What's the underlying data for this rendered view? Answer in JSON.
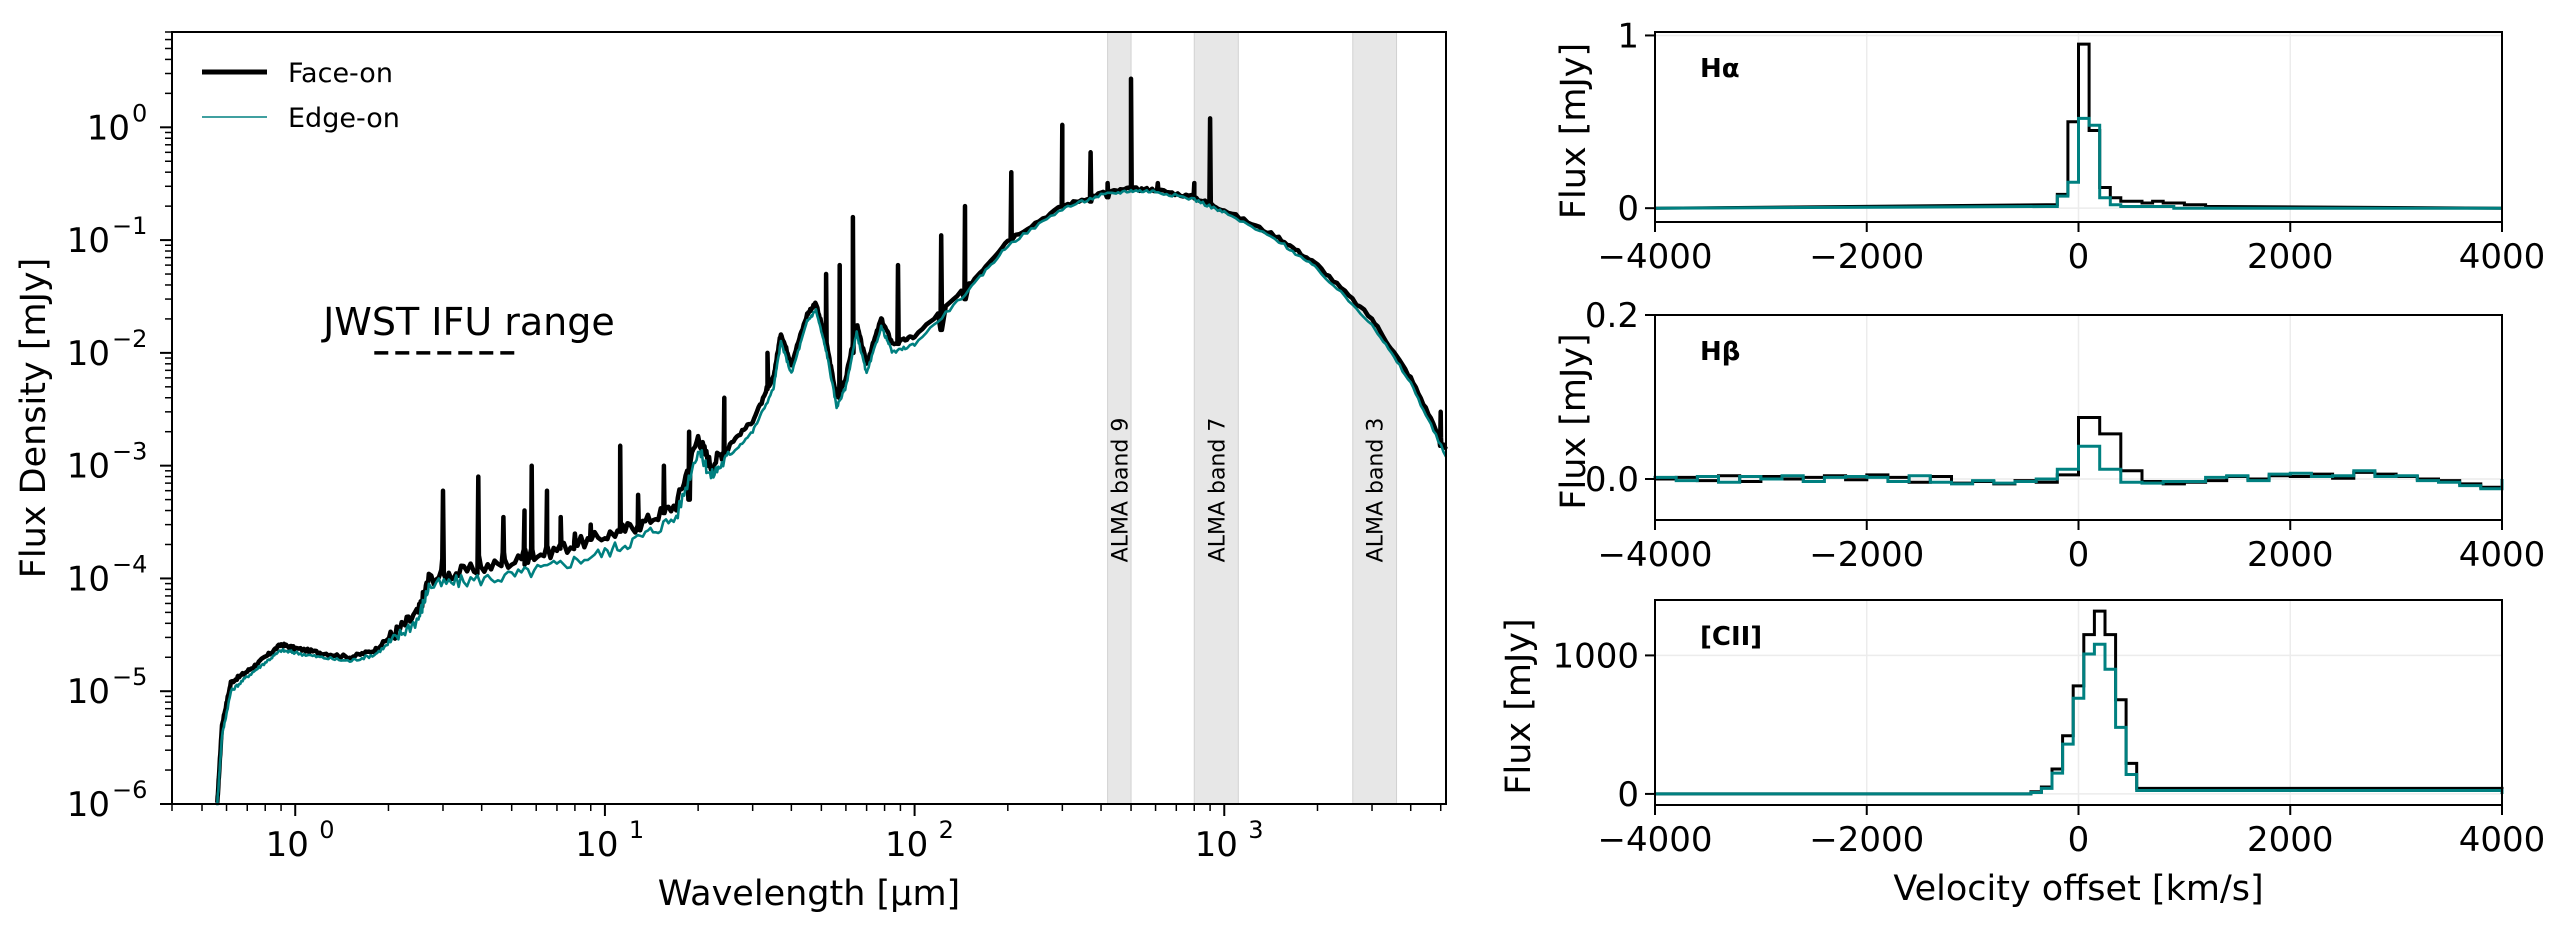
{
  "chart_data": [
    {
      "type": "line",
      "title": "",
      "xlabel": "Wavelength [μm]",
      "ylabel": "Flux Density [mJy]",
      "xscale": "log",
      "yscale": "log",
      "xlim": [
        0.4,
        5200
      ],
      "ylim": [
        1e-06,
        7
      ],
      "x_ticks": [
        {
          "value": 1,
          "base": "10",
          "exp": "0"
        },
        {
          "value": 10,
          "base": "10",
          "exp": "1"
        },
        {
          "value": 100,
          "base": "10",
          "exp": "2"
        },
        {
          "value": 1000,
          "base": "10",
          "exp": "3"
        }
      ],
      "y_ticks": [
        {
          "value": 1,
          "base": "10",
          "exp": "0"
        },
        {
          "value": 0.1,
          "base": "10",
          "exp": "−1"
        },
        {
          "value": 0.01,
          "base": "10",
          "exp": "−2"
        },
        {
          "value": 0.001,
          "base": "10",
          "exp": "−3"
        },
        {
          "value": 0.0001,
          "base": "10",
          "exp": "−4"
        },
        {
          "value": 1e-05,
          "base": "10",
          "exp": "−5"
        },
        {
          "value": 1e-06,
          "base": "10",
          "exp": "−6"
        }
      ],
      "legend": {
        "position": "top-left"
      },
      "series": [
        {
          "name": "Face-on",
          "color": "#000000",
          "continuum": [
            [
              0.56,
              1e-06
            ],
            [
              0.58,
              5e-06
            ],
            [
              0.62,
              1.2e-05
            ],
            [
              0.7,
              1.5e-05
            ],
            [
              0.8,
              2e-05
            ],
            [
              0.9,
              2.6e-05
            ],
            [
              1.0,
              2.4e-05
            ],
            [
              1.2,
              2.2e-05
            ],
            [
              1.5,
              2e-05
            ],
            [
              1.8,
              2.3e-05
            ],
            [
              2.1,
              3.3e-05
            ],
            [
              2.5,
              5e-05
            ],
            [
              2.7,
              0.0001
            ],
            [
              3.5,
              0.000115
            ],
            [
              5.0,
              0.00014
            ],
            [
              7.0,
              0.00018
            ],
            [
              10,
              0.00024
            ],
            [
              13,
              0.0003
            ],
            [
              17,
              0.00045
            ],
            [
              20,
              0.0018
            ],
            [
              22,
              0.001
            ],
            [
              25,
              0.0015
            ],
            [
              30,
              0.0025
            ],
            [
              35,
              0.006
            ],
            [
              37,
              0.015
            ],
            [
              40,
              0.008
            ],
            [
              45,
              0.022
            ],
            [
              48,
              0.028
            ],
            [
              52,
              0.012
            ],
            [
              56,
              0.004
            ],
            [
              60,
              0.006
            ],
            [
              65,
              0.018
            ],
            [
              70,
              0.008
            ],
            [
              78,
              0.02
            ],
            [
              85,
              0.012
            ],
            [
              100,
              0.014
            ],
            [
              150,
              0.04
            ],
            [
              200,
              0.1
            ],
            [
              300,
              0.2
            ],
            [
              400,
              0.26
            ],
            [
              500,
              0.285
            ],
            [
              600,
              0.28
            ],
            [
              800,
              0.24
            ],
            [
              1000,
              0.185
            ],
            [
              1500,
              0.105
            ],
            [
              2000,
              0.06
            ],
            [
              3000,
              0.02
            ],
            [
              4000,
              0.006
            ],
            [
              5200,
              0.0014
            ]
          ]
        },
        {
          "name": "Edge-on",
          "color": "#008080",
          "continuum": [
            [
              0.56,
              1e-06
            ],
            [
              0.58,
              4e-06
            ],
            [
              0.62,
              1e-05
            ],
            [
              0.7,
              1.35e-05
            ],
            [
              0.8,
              1.8e-05
            ],
            [
              0.9,
              2.3e-05
            ],
            [
              1.0,
              2.2e-05
            ],
            [
              1.2,
              2e-05
            ],
            [
              1.5,
              1.85e-05
            ],
            [
              1.8,
              2.1e-05
            ],
            [
              2.1,
              2.9e-05
            ],
            [
              2.5,
              4.4e-05
            ],
            [
              2.7,
              8.5e-05
            ],
            [
              3.5,
              9.5e-05
            ],
            [
              5.0,
              0.000105
            ],
            [
              7.0,
              0.00013
            ],
            [
              10,
              0.00017
            ],
            [
              13,
              0.00023
            ],
            [
              17,
              0.00035
            ],
            [
              20,
              0.0014
            ],
            [
              22,
              0.0008
            ],
            [
              25,
              0.0012
            ],
            [
              30,
              0.002
            ],
            [
              35,
              0.0048
            ],
            [
              37,
              0.0125
            ],
            [
              40,
              0.0065
            ],
            [
              45,
              0.019
            ],
            [
              48,
              0.024
            ],
            [
              52,
              0.01
            ],
            [
              56,
              0.0033
            ],
            [
              60,
              0.005
            ],
            [
              65,
              0.015
            ],
            [
              70,
              0.0065
            ],
            [
              78,
              0.017
            ],
            [
              85,
              0.01
            ],
            [
              100,
              0.012
            ],
            [
              150,
              0.036
            ],
            [
              200,
              0.09
            ],
            [
              300,
              0.19
            ],
            [
              400,
              0.25
            ],
            [
              500,
              0.275
            ],
            [
              600,
              0.27
            ],
            [
              800,
              0.23
            ],
            [
              1000,
              0.175
            ],
            [
              1500,
              0.098
            ],
            [
              2000,
              0.055
            ],
            [
              3000,
              0.018
            ],
            [
              4000,
              0.0054
            ],
            [
              5200,
              0.0012
            ]
          ]
        }
      ],
      "emission_lines": [
        [
          3.0,
          0.00015,
          0.0006
        ],
        [
          3.9,
          0.00016,
          0.0008
        ],
        [
          4.7,
          0.00017,
          0.00035
        ],
        [
          5.5,
          0.00018,
          0.0004
        ],
        [
          5.8,
          0.00018,
          0.001
        ],
        [
          6.5,
          0.00019,
          0.0006
        ],
        [
          7.2,
          0.0002,
          0.00035
        ],
        [
          8.0,
          0.00021,
          0.00025
        ],
        [
          9.0,
          0.00022,
          0.0003
        ],
        [
          11.2,
          0.00026,
          0.0015
        ],
        [
          12.8,
          0.00029,
          0.00055
        ],
        [
          15.5,
          0.00038,
          0.001
        ],
        [
          18.7,
          0.0005,
          0.002
        ],
        [
          24.3,
          0.0013,
          0.004
        ],
        [
          33.5,
          0.005,
          0.01
        ],
        [
          51.8,
          0.012,
          0.05
        ],
        [
          57.3,
          0.004,
          0.06
        ],
        [
          63.2,
          0.01,
          0.16
        ],
        [
          88.4,
          0.012,
          0.06
        ],
        [
          121.9,
          0.016,
          0.11
        ],
        [
          145.5,
          0.03,
          0.2
        ],
        [
          205.2,
          0.1,
          0.4
        ],
        [
          300,
          0.2,
          1.05
        ],
        [
          370,
          0.22,
          0.6
        ],
        [
          420,
          0.24,
          0.32
        ],
        [
          500,
          0.285,
          2.7
        ],
        [
          610,
          0.28,
          0.32
        ],
        [
          800,
          0.24,
          0.32
        ],
        [
          900,
          0.21,
          1.2
        ],
        [
          5000,
          0.0015,
          0.003
        ]
      ],
      "jwst_range": {
        "label": "JWST IFU range",
        "x": [
          1.8,
          5.3
        ],
        "y": 0.01
      },
      "alma_bands": [
        {
          "label": "ALMA band 9",
          "x": [
            420,
            500
          ]
        },
        {
          "label": "ALMA band 7",
          "x": [
            800,
            1110
          ]
        },
        {
          "label": "ALMA band 3",
          "x": [
            2600,
            3600
          ]
        }
      ]
    },
    {
      "type": "line",
      "panel_label": "Hα",
      "xlabel": "",
      "ylabel": "Flux [mJy]",
      "xlim": [
        -4000,
        4000
      ],
      "ylim": [
        -0.08,
        1.02
      ],
      "x_ticks": [
        -4000,
        -2000,
        0,
        2000,
        4000
      ],
      "x_tick_labels": [
        "−4000",
        "−2000",
        "0",
        "2000",
        "4000"
      ],
      "y_ticks": [
        0,
        1
      ],
      "y_tick_labels": [
        "0",
        "1"
      ],
      "x": [
        -300,
        -200,
        -100,
        0,
        100,
        200,
        300,
        400,
        500,
        600,
        700,
        800,
        900,
        1000,
        1100,
        1200
      ],
      "series": [
        {
          "name": "Face-on",
          "color": "#000000",
          "values": [
            0.02,
            0.08,
            0.5,
            0.95,
            0.45,
            0.12,
            0.06,
            0.04,
            0.04,
            0.03,
            0.04,
            0.03,
            0.03,
            0.02,
            0.02,
            0.01
          ]
        },
        {
          "name": "Edge-on",
          "color": "#008080",
          "values": [
            0.01,
            0.07,
            0.15,
            0.52,
            0.48,
            0.06,
            0.02,
            0.01,
            0.01,
            0.01,
            0.01,
            0.01,
            0.0,
            0.0,
            0.0,
            0.0
          ]
        }
      ]
    },
    {
      "type": "line",
      "panel_label": "Hβ",
      "xlabel": "",
      "ylabel": "Flux [mJy]",
      "xlim": [
        -4000,
        4000
      ],
      "ylim": [
        -0.05,
        0.2
      ],
      "x_ticks": [
        -4000,
        -2000,
        0,
        2000,
        4000
      ],
      "x_tick_labels": [
        "−4000",
        "−2000",
        "0",
        "2000",
        "4000"
      ],
      "y_ticks": [
        0,
        0.2
      ],
      "y_tick_labels": [
        "0.0",
        "0.2"
      ],
      "x": [
        -4000,
        -3800,
        -3600,
        -3400,
        -3200,
        -3000,
        -2800,
        -2600,
        -2400,
        -2200,
        -2000,
        -1800,
        -1600,
        -1400,
        -1200,
        -1000,
        -800,
        -600,
        -400,
        -200,
        0,
        200,
        400,
        600,
        800,
        1000,
        1200,
        1400,
        1600,
        1800,
        2000,
        2200,
        2400,
        2600,
        2800,
        3000,
        3200,
        3400,
        3600,
        3800
      ],
      "series": [
        {
          "name": "Face-on",
          "color": "#000000",
          "values": [
            0.0,
            0.002,
            -0.002,
            0.004,
            -0.003,
            0.003,
            0.0,
            0.002,
            0.004,
            -0.001,
            0.005,
            0.002,
            -0.004,
            0.003,
            -0.005,
            -0.003,
            -0.006,
            -0.002,
            -0.004,
            0.005,
            0.075,
            0.055,
            0.01,
            -0.003,
            -0.006,
            -0.004,
            -0.002,
            0.003,
            0.0,
            0.004,
            0.003,
            0.006,
            0.001,
            0.008,
            0.006,
            0.003,
            0.0,
            -0.002,
            -0.006,
            -0.01
          ]
        },
        {
          "name": "Edge-on",
          "color": "#008080",
          "values": [
            0.002,
            -0.002,
            0.003,
            -0.004,
            0.003,
            0.0,
            0.004,
            -0.003,
            0.002,
            0.003,
            0.002,
            -0.003,
            0.004,
            -0.004,
            -0.006,
            -0.002,
            -0.005,
            -0.003,
            0.0,
            0.012,
            0.04,
            0.012,
            -0.004,
            -0.005,
            -0.003,
            -0.003,
            0.002,
            0.004,
            -0.002,
            0.006,
            0.007,
            0.003,
            0.004,
            0.01,
            0.003,
            0.004,
            -0.002,
            -0.004,
            -0.008,
            -0.012
          ]
        }
      ]
    },
    {
      "type": "line",
      "panel_label": "[CII]",
      "xlabel": "Velocity offset [km/s]",
      "ylabel": "Flux [mJy]",
      "xlim": [
        -4000,
        4000
      ],
      "ylim": [
        -80,
        1400
      ],
      "x_ticks": [
        -4000,
        -2000,
        0,
        2000,
        4000
      ],
      "x_tick_labels": [
        "−4000",
        "−2000",
        "0",
        "2000",
        "4000"
      ],
      "y_ticks": [
        0,
        1000
      ],
      "y_tick_labels": [
        "0",
        "1000"
      ],
      "x": [
        -4000,
        -450,
        -350,
        -250,
        -150,
        -50,
        50,
        150,
        250,
        350,
        450,
        550,
        4000
      ],
      "series": [
        {
          "name": "Face-on",
          "color": "#000000",
          "values": [
            0,
            15,
            50,
            180,
            420,
            780,
            1150,
            1320,
            1150,
            680,
            220,
            40,
            0
          ]
        },
        {
          "name": "Edge-on",
          "color": "#008080",
          "values": [
            0,
            10,
            40,
            150,
            360,
            690,
            1010,
            1080,
            900,
            480,
            140,
            25,
            0
          ]
        }
      ]
    }
  ]
}
